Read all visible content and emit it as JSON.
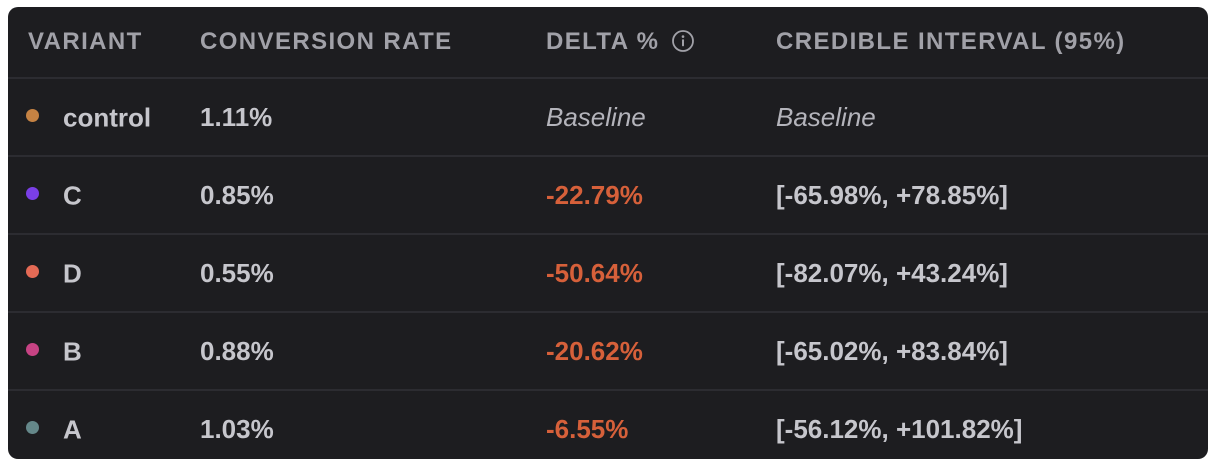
{
  "table": {
    "headers": {
      "variant": "VARIANT",
      "conversion_rate": "CONVERSION RATE",
      "delta": "DELTA %",
      "credible_interval": "CREDIBLE INTERVAL (95%)"
    },
    "rows": [
      {
        "variant": "control",
        "dot_color": "#c58243",
        "conversion_rate": "1.11%",
        "delta": "Baseline",
        "credible_interval": "Baseline"
      },
      {
        "variant": "C",
        "dot_color": "#7a3fe6",
        "conversion_rate": "0.85%",
        "delta": "-22.79%",
        "credible_interval": "[-65.98%, +78.85%]"
      },
      {
        "variant": "D",
        "dot_color": "#e46a55",
        "conversion_rate": "0.55%",
        "delta": "-50.64%",
        "credible_interval": "[-82.07%, +43.24%]"
      },
      {
        "variant": "B",
        "dot_color": "#c74384",
        "conversion_rate": "0.88%",
        "delta": "-20.62%",
        "credible_interval": "[-65.02%, +83.84%]"
      },
      {
        "variant": "A",
        "dot_color": "#65888a",
        "conversion_rate": "1.03%",
        "delta": "-6.55%",
        "credible_interval": "[-56.12%, +101.82%]"
      }
    ]
  },
  "icons": {
    "delta_info": "info-icon"
  },
  "colors": {
    "negative": "#d6603a",
    "panel_background": "#1d1d20"
  }
}
